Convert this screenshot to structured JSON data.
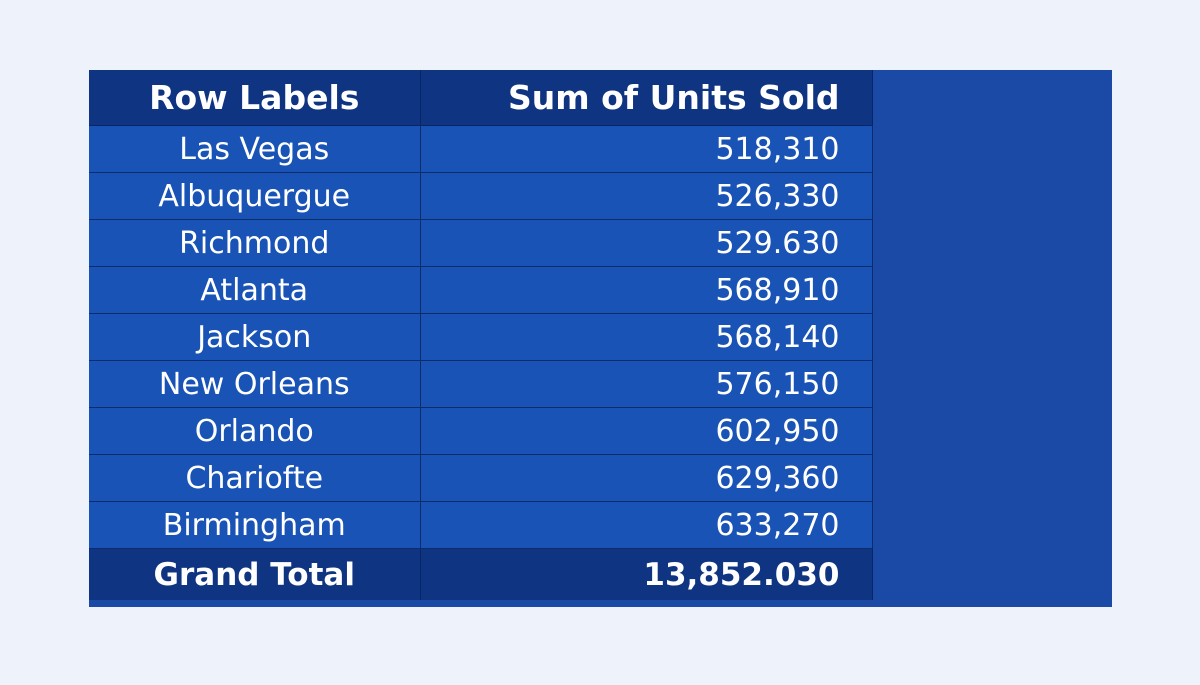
{
  "pivot_table": {
    "headers": {
      "row_labels": "Row Labels",
      "sum_units": "Sum of Units Sold"
    },
    "rows": [
      {
        "label": "Las Vegas",
        "value": "518,310"
      },
      {
        "label": "Albuquergue",
        "value": "526,330"
      },
      {
        "label": "Richmond",
        "value": "529.630"
      },
      {
        "label": "Atlanta",
        "value": "568,910"
      },
      {
        "label": "Jackson",
        "value": "568,140"
      },
      {
        "label": "New Orleans",
        "value": "576,150"
      },
      {
        "label": "Orlando",
        "value": "602,950"
      },
      {
        "label": "Chariofte",
        "value": "629,360"
      },
      {
        "label": "Birmingham",
        "value": "633,270"
      }
    ],
    "total": {
      "label": "Grand Total",
      "value": "13,852.030"
    }
  },
  "colors": {
    "page_background": "#eef2fb",
    "panel": "#1a4aa5",
    "header": "#0f3481",
    "row": "#1853b5",
    "text": "#ffffff"
  }
}
